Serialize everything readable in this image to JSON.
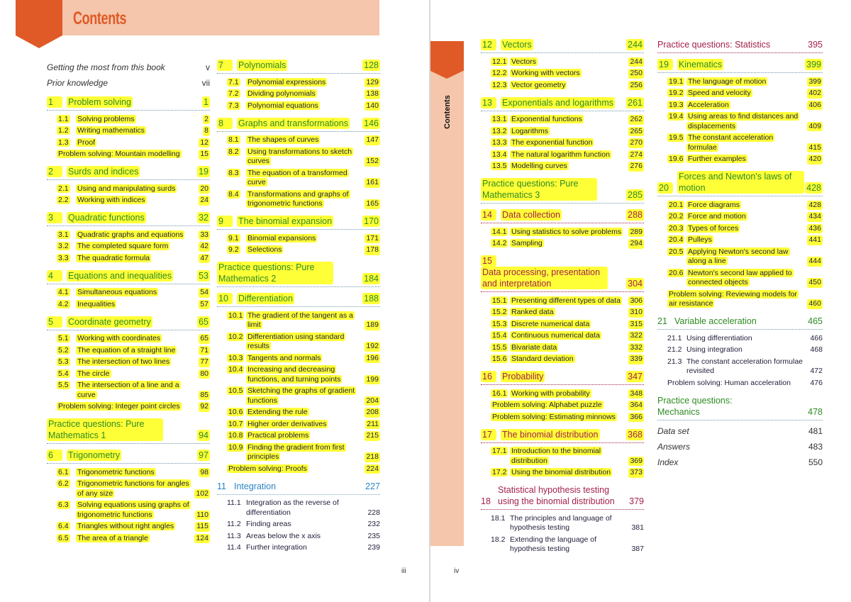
{
  "header": {
    "title": "Contents",
    "side_tab": "Contents"
  },
  "colors": {
    "orange": "#e05a27",
    "salmon": "#f5c6ab",
    "highlight": "#ffff38",
    "green": "#2e8b22",
    "maroon": "#a3224a",
    "blue": "#2a84c4"
  },
  "folios": {
    "left": "iii",
    "right": "iv"
  },
  "columns": [
    {
      "entries": [
        {
          "type": "plain",
          "title": "Getting the most from this book",
          "page": "v"
        },
        {
          "type": "plain",
          "title": "Prior knowledge",
          "page": "vii"
        },
        {
          "type": "chapter",
          "num": "1",
          "title": "Problem solving",
          "page": "1",
          "color": "green",
          "hl": true
        },
        {
          "type": "sub",
          "num": "1.1",
          "title": "Solving problems",
          "page": "2",
          "hl": true
        },
        {
          "type": "sub",
          "num": "1.2",
          "title": "Writing mathematics",
          "page": "8",
          "hl": true
        },
        {
          "type": "sub",
          "num": "1.3",
          "title": "Proof",
          "page": "12",
          "hl": true
        },
        {
          "type": "ps",
          "title": "Problem solving: Mountain modelling",
          "page": "15",
          "hl": true
        },
        {
          "type": "chapter",
          "num": "2",
          "title": "Surds and indices",
          "page": "19",
          "color": "green",
          "hl": true
        },
        {
          "type": "sub",
          "num": "2.1",
          "title": "Using and manipulating surds",
          "page": "20",
          "hl": true
        },
        {
          "type": "sub",
          "num": "2.2",
          "title": "Working with indices",
          "page": "24",
          "hl": true
        },
        {
          "type": "chapter",
          "num": "3",
          "title": "Quadratic functions",
          "page": "32",
          "color": "green",
          "hl": true
        },
        {
          "type": "sub",
          "num": "3.1",
          "title": "Quadratic graphs and equations",
          "page": "33",
          "hl": true
        },
        {
          "type": "sub",
          "num": "3.2",
          "title": "The completed square form",
          "page": "42",
          "hl": true
        },
        {
          "type": "sub",
          "num": "3.3",
          "title": "The quadratic formula",
          "page": "47",
          "hl": true
        },
        {
          "type": "chapter",
          "num": "4",
          "title": "Equations and inequalities",
          "page": "53",
          "color": "green",
          "hl": true
        },
        {
          "type": "sub",
          "num": "4.1",
          "title": "Simultaneous equations",
          "page": "54",
          "hl": true
        },
        {
          "type": "sub",
          "num": "4.2",
          "title": "Inequalities",
          "page": "57",
          "hl": true
        },
        {
          "type": "chapter",
          "num": "5",
          "title": "Coordinate geometry",
          "page": "65",
          "color": "green",
          "hl": true
        },
        {
          "type": "sub",
          "num": "5.1",
          "title": "Working with coordinates",
          "page": "65",
          "hl": true
        },
        {
          "type": "sub",
          "num": "5.2",
          "title": "The equation of a straight line",
          "page": "71",
          "hl": true
        },
        {
          "type": "sub",
          "num": "5.3",
          "title": "The intersection of two lines",
          "page": "77",
          "hl": true
        },
        {
          "type": "sub",
          "num": "5.4",
          "title": "The circle",
          "page": "80",
          "hl": true
        },
        {
          "type": "sub",
          "num": "5.5",
          "title": "The intersection of a line and a curve",
          "page": "85",
          "hl": true
        },
        {
          "type": "ps",
          "title": "Problem solving: Integer point circles",
          "page": "92",
          "hl": true
        },
        {
          "type": "practice",
          "title": "Practice questions: Pure Mathematics 1",
          "page": "94",
          "color": "green",
          "hl": true
        },
        {
          "type": "chapter",
          "num": "6",
          "title": "Trigonometry",
          "page": "97",
          "color": "green",
          "hl": true
        },
        {
          "type": "sub",
          "num": "6.1",
          "title": "Trigonometric functions",
          "page": "98",
          "hl": true
        },
        {
          "type": "sub",
          "num": "6.2",
          "title": "Trigonometric functions for angles of any size",
          "page": "102",
          "hl": true
        },
        {
          "type": "sub",
          "num": "6.3",
          "title": "Solving equations using graphs of trigonometric functions",
          "page": "110",
          "hl": true
        },
        {
          "type": "sub",
          "num": "6.4",
          "title": "Triangles without right angles",
          "page": "115",
          "hl": true
        },
        {
          "type": "sub",
          "num": "6.5",
          "title": "The area of a triangle",
          "page": "124",
          "hl": true
        }
      ]
    },
    {
      "entries": [
        {
          "type": "chapter",
          "num": "7",
          "title": "Polynomials",
          "page": "128",
          "color": "green",
          "hl": true
        },
        {
          "type": "sub",
          "num": "7.1",
          "title": "Polynomial expressions",
          "page": "129",
          "hl": true
        },
        {
          "type": "sub",
          "num": "7.2",
          "title": "Dividing polynomials",
          "page": "138",
          "hl": true
        },
        {
          "type": "sub",
          "num": "7.3",
          "title": "Polynomial equations",
          "page": "140",
          "hl": true
        },
        {
          "type": "chapter",
          "num": "8",
          "title": "Graphs and transformations",
          "page": "146",
          "color": "green",
          "hl": true
        },
        {
          "type": "sub",
          "num": "8.1",
          "title": "The shapes of curves",
          "page": "147",
          "hl": true
        },
        {
          "type": "sub",
          "num": "8.2",
          "title": "Using transformations to sketch curves",
          "page": "152",
          "hl": true
        },
        {
          "type": "sub",
          "num": "8.3",
          "title": "The equation of a transformed curve",
          "page": "161",
          "hl": true
        },
        {
          "type": "sub",
          "num": "8.4",
          "title": "Transformations and graphs of trigonometric functions",
          "page": "165",
          "hl": true
        },
        {
          "type": "chapter",
          "num": "9",
          "title": "The binomial expansion",
          "page": "170",
          "color": "green",
          "hl": true
        },
        {
          "type": "sub",
          "num": "9.1",
          "title": "Binomial expansions",
          "page": "171",
          "hl": true
        },
        {
          "type": "sub",
          "num": "9.2",
          "title": "Selections",
          "page": "178",
          "hl": true
        },
        {
          "type": "practice",
          "title": "Practice questions: Pure Mathematics 2",
          "page": "184",
          "color": "green",
          "hl": true
        },
        {
          "type": "chapter",
          "num": "10",
          "title": "Differentiation",
          "page": "188",
          "color": "green",
          "hl": true
        },
        {
          "type": "sub",
          "num": "10.1",
          "title": "The gradient of the tangent as a limit",
          "page": "189",
          "hl": true
        },
        {
          "type": "sub",
          "num": "10.2",
          "title": "Differentiation using standard results",
          "page": "192",
          "hl": true
        },
        {
          "type": "sub",
          "num": "10.3",
          "title": "Tangents and normals",
          "page": "196",
          "hl": true
        },
        {
          "type": "sub",
          "num": "10.4",
          "title": "Increasing and decreasing functions, and turning points",
          "page": "199",
          "hl": true
        },
        {
          "type": "sub",
          "num": "10.5",
          "title": "Sketching the graphs of gradient functions",
          "page": "204",
          "hl": true
        },
        {
          "type": "sub",
          "num": "10.6",
          "title": "Extending the rule",
          "page": "208",
          "hl": true
        },
        {
          "type": "sub",
          "num": "10.7",
          "title": "Higher order derivatives",
          "page": "211",
          "hl": true
        },
        {
          "type": "sub",
          "num": "10.8",
          "title": "Practical problems",
          "page": "215",
          "hl": true
        },
        {
          "type": "sub",
          "num": "10.9",
          "title": "Finding the gradient from first principles",
          "page": "218",
          "hl": true
        },
        {
          "type": "ps",
          "title": "Problem solving: Proofs",
          "page": "224",
          "hl": true
        },
        {
          "type": "chapter",
          "num": "11",
          "title": "Integration",
          "page": "227",
          "color": "blue",
          "hl": false
        },
        {
          "type": "sub",
          "num": "11.1",
          "title": "Integration as the reverse of differentiation",
          "page": "228",
          "hl": false
        },
        {
          "type": "sub",
          "num": "11.2",
          "title": "Finding areas",
          "page": "232",
          "hl": false
        },
        {
          "type": "sub",
          "num": "11.3",
          "title": "Areas below the x axis",
          "page": "235",
          "hl": false
        },
        {
          "type": "sub",
          "num": "11.4",
          "title": "Further integration",
          "page": "239",
          "hl": false
        }
      ]
    },
    {
      "entries": [
        {
          "type": "chapter",
          "num": "12",
          "title": "Vectors",
          "page": "244",
          "color": "green",
          "hl": true
        },
        {
          "type": "sub",
          "num": "12.1",
          "title": "Vectors",
          "page": "244",
          "hl": true
        },
        {
          "type": "sub",
          "num": "12.2",
          "title": "Working with vectors",
          "page": "250",
          "hl": true
        },
        {
          "type": "sub",
          "num": "12.3",
          "title": "Vector geometry",
          "page": "256",
          "hl": true
        },
        {
          "type": "chapter",
          "num": "13",
          "title": "Exponentials and logarithms",
          "page": "261",
          "color": "green",
          "hl": true
        },
        {
          "type": "sub",
          "num": "13.1",
          "title": "Exponential functions",
          "page": "262",
          "hl": true
        },
        {
          "type": "sub",
          "num": "13.2",
          "title": "Logarithms",
          "page": "265",
          "hl": true
        },
        {
          "type": "sub",
          "num": "13.3",
          "title": "The exponential function",
          "page": "270",
          "hl": true
        },
        {
          "type": "sub",
          "num": "13.4",
          "title": "The natural logarithm function",
          "page": "274",
          "hl": true
        },
        {
          "type": "sub",
          "num": "13.5",
          "title": "Modelling curves",
          "page": "276",
          "hl": true
        },
        {
          "type": "practice",
          "title": "Practice questions: Pure Mathematics 3",
          "page": "285",
          "color": "green",
          "hl": true
        },
        {
          "type": "chapter",
          "num": "14",
          "title": "Data collection",
          "page": "288",
          "color": "maroon",
          "hl": true
        },
        {
          "type": "sub",
          "num": "14.1",
          "title": "Using statistics to solve problems",
          "page": "289",
          "hl": true
        },
        {
          "type": "sub",
          "num": "14.2",
          "title": "Sampling",
          "page": "294",
          "hl": true
        },
        {
          "type": "chapter",
          "num": "15",
          "title": "Data processing, presentation and interpretation",
          "page": "304",
          "color": "maroon",
          "hl": true
        },
        {
          "type": "sub",
          "num": "15.1",
          "title": "Presenting different types of data",
          "page": "306",
          "hl": true
        },
        {
          "type": "sub",
          "num": "15.2",
          "title": "Ranked data",
          "page": "310",
          "hl": true
        },
        {
          "type": "sub",
          "num": "15.3",
          "title": "Discrete numerical data",
          "page": "315",
          "hl": true
        },
        {
          "type": "sub",
          "num": "15.4",
          "title": "Continuous numerical data",
          "page": "322",
          "hl": true
        },
        {
          "type": "sub",
          "num": "15.5",
          "title": "Bivariate data",
          "page": "332",
          "hl": true
        },
        {
          "type": "sub",
          "num": "15.6",
          "title": "Standard deviation",
          "page": "339",
          "hl": true
        },
        {
          "type": "chapter",
          "num": "16",
          "title": "Probability",
          "page": "347",
          "color": "maroon",
          "hl": true
        },
        {
          "type": "sub",
          "num": "16.1",
          "title": "Working with probability",
          "page": "348",
          "hl": true
        },
        {
          "type": "ps",
          "title": "Problem solving: Alphabet puzzle",
          "page": "364",
          "hl": true
        },
        {
          "type": "ps",
          "title": "Problem solving: Estimating minnows",
          "page": "366",
          "hl": true
        },
        {
          "type": "chapter",
          "num": "17",
          "title": "The binomial distribution",
          "page": "368",
          "color": "maroon",
          "hl": true
        },
        {
          "type": "sub",
          "num": "17.1",
          "title": "Introduction to the binomial distribution",
          "page": "369",
          "hl": true
        },
        {
          "type": "sub",
          "num": "17.2",
          "title": "Using the binomial distribution",
          "page": "373",
          "hl": true
        },
        {
          "type": "chapter",
          "num": "18",
          "title": "Statistical hypothesis testing using the binomial distribution",
          "page": "379",
          "color": "maroon",
          "hl": false
        },
        {
          "type": "sub",
          "num": "18.1",
          "title": "The principles and language of hypothesis testing",
          "page": "381",
          "hl": false
        },
        {
          "type": "sub",
          "num": "18.2",
          "title": "Extending the language of hypothesis testing",
          "page": "387",
          "hl": false
        }
      ]
    },
    {
      "entries": [
        {
          "type": "practice",
          "title": "Practice questions: Statistics",
          "page": "395",
          "color": "maroon",
          "hl": false
        },
        {
          "type": "chapter",
          "num": "19",
          "title": "Kinematics",
          "page": "399",
          "color": "green",
          "hl": true
        },
        {
          "type": "sub",
          "num": "19.1",
          "title": "The language of motion",
          "page": "399",
          "hl": true
        },
        {
          "type": "sub",
          "num": "19.2",
          "title": "Speed and velocity",
          "page": "402",
          "hl": true
        },
        {
          "type": "sub",
          "num": "19.3",
          "title": "Acceleration",
          "page": "406",
          "hl": true
        },
        {
          "type": "sub",
          "num": "19.4",
          "title": "Using areas to find distances and displacements",
          "page": "409",
          "hl": true
        },
        {
          "type": "sub",
          "num": "19.5",
          "title": "The constant acceleration formulae",
          "page": "415",
          "hl": true
        },
        {
          "type": "sub",
          "num": "19.6",
          "title": "Further examples",
          "page": "420",
          "hl": true
        },
        {
          "type": "chapter",
          "num": "20",
          "title": "Forces and Newton's laws of motion",
          "page": "428",
          "color": "green",
          "hl": true
        },
        {
          "type": "sub",
          "num": "20.1",
          "title": "Force diagrams",
          "page": "428",
          "hl": true
        },
        {
          "type": "sub",
          "num": "20.2",
          "title": "Force and motion",
          "page": "434",
          "hl": true
        },
        {
          "type": "sub",
          "num": "20.3",
          "title": "Types of forces",
          "page": "436",
          "hl": true
        },
        {
          "type": "sub",
          "num": "20.4",
          "title": "Pulleys",
          "page": "441",
          "hl": true
        },
        {
          "type": "sub",
          "num": "20.5",
          "title": "Applying Newton's second law along a line",
          "page": "444",
          "hl": true
        },
        {
          "type": "sub",
          "num": "20.6",
          "title": "Newton's second law applied to connected objects",
          "page": "450",
          "hl": true
        },
        {
          "type": "ps",
          "title": "Problem solving: Reviewing models for air resistance",
          "page": "460",
          "hl": true
        },
        {
          "type": "chapter",
          "num": "21",
          "title": "Variable acceleration",
          "page": "465",
          "color": "green",
          "hl": false
        },
        {
          "type": "sub",
          "num": "21.1",
          "title": "Using differentiation",
          "page": "466",
          "hl": false
        },
        {
          "type": "sub",
          "num": "21.2",
          "title": "Using integration",
          "page": "468",
          "hl": false
        },
        {
          "type": "sub",
          "num": "21.3",
          "title": "The constant acceleration formulae revisited",
          "page": "472",
          "hl": false
        },
        {
          "type": "ps",
          "title": "Problem solving: Human acceleration",
          "page": "476",
          "hl": false
        },
        {
          "type": "practice",
          "title": "Practice questions: Mechanics",
          "page": "478",
          "color": "green",
          "hl": false
        },
        {
          "type": "plain",
          "title": "Data set",
          "page": "481"
        },
        {
          "type": "plain",
          "title": "Answers",
          "page": "483"
        },
        {
          "type": "plain",
          "title": "Index",
          "page": "550"
        }
      ]
    }
  ]
}
